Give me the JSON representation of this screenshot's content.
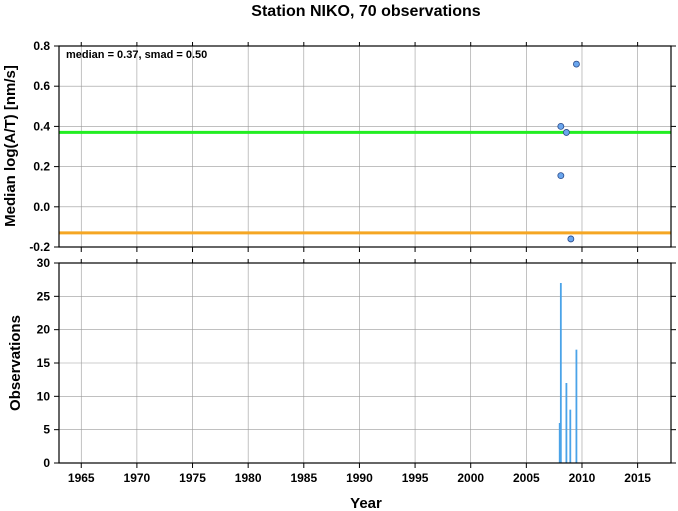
{
  "title": "Station NIKO, 70 observations",
  "chart_data": [
    {
      "type": "scatter",
      "ylabel": "Median log(A/T) [nm/s]",
      "xlabel": "",
      "xlim": [
        1963,
        2018
      ],
      "ylim": [
        -0.2,
        0.8
      ],
      "yticks": [
        -0.2,
        0.0,
        0.2,
        0.4,
        0.6,
        0.8
      ],
      "ytick_labels": [
        "-0.2",
        "0.0",
        "0.2",
        "0.4",
        "0.6",
        "0.8"
      ],
      "grid": true,
      "annotation": "median = 0.37, smad = 0.50",
      "hlines": [
        {
          "y": 0.37,
          "color": "#22ee22"
        },
        {
          "y": -0.13,
          "color": "#f5a623"
        }
      ],
      "point_color": "#6aa6ee",
      "points": [
        {
          "x": 2008.1,
          "y": 0.4
        },
        {
          "x": 2008.1,
          "y": 0.155
        },
        {
          "x": 2008.6,
          "y": 0.37
        },
        {
          "x": 2009.0,
          "y": -0.16
        },
        {
          "x": 2009.5,
          "y": 0.71
        }
      ]
    },
    {
      "type": "bar",
      "ylabel": "Observations",
      "xlabel": "Year",
      "xlim": [
        1963,
        2018
      ],
      "ylim": [
        0,
        30
      ],
      "yticks": [
        0,
        5,
        10,
        15,
        20,
        25,
        30
      ],
      "ytick_labels": [
        "0",
        "5",
        "10",
        "15",
        "20",
        "25",
        "30"
      ],
      "xticks": [
        1965,
        1970,
        1975,
        1980,
        1985,
        1990,
        1995,
        2000,
        2005,
        2010,
        2015
      ],
      "xtick_labels": [
        "1965",
        "1970",
        "1975",
        "1980",
        "1985",
        "1990",
        "1995",
        "2000",
        "2005",
        "2010",
        "2015"
      ],
      "grid": true,
      "bar_color": "#4aa3e8",
      "bars": [
        {
          "x": 2008.0,
          "y": 6
        },
        {
          "x": 2008.1,
          "y": 27
        },
        {
          "x": 2008.6,
          "y": 12
        },
        {
          "x": 2008.95,
          "y": 8
        },
        {
          "x": 2009.5,
          "y": 17
        }
      ]
    }
  ]
}
